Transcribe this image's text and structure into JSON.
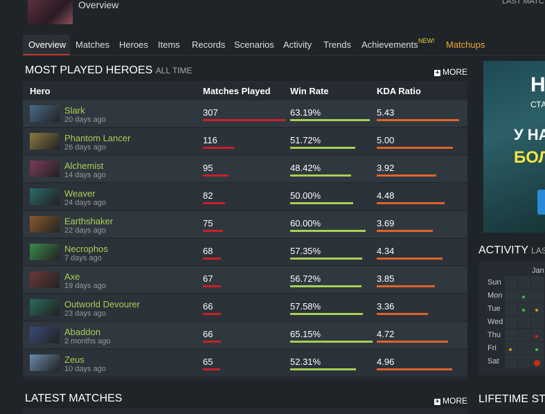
{
  "header": {
    "title": "Overview",
    "last_match": "LAST MATC"
  },
  "tabs": [
    "Overview",
    "Matches",
    "Heroes",
    "Items",
    "Records",
    "Scenarios",
    "Activity",
    "Trends",
    "Achievements",
    "Matchups"
  ],
  "tab_badge": "NEW!",
  "most_played": {
    "title": "MOST PLAYED HEROES",
    "subtitle": "ALL TIME",
    "more": "MORE",
    "columns": [
      "Hero",
      "Matches Played",
      "Win Rate",
      "KDA Ratio"
    ],
    "rows": [
      {
        "hero": "Slark",
        "last": "20 days ago",
        "matches": 307,
        "win_rate": 63.19,
        "win_rate_label": "63.19%",
        "kda": 5.43,
        "kda_label": "5.43"
      },
      {
        "hero": "Phantom Lancer",
        "last": "26 days ago",
        "matches": 116,
        "win_rate": 51.72,
        "win_rate_label": "51.72%",
        "kda": 5.0,
        "kda_label": "5.00"
      },
      {
        "hero": "Alchemist",
        "last": "14 days ago",
        "matches": 95,
        "win_rate": 48.42,
        "win_rate_label": "48.42%",
        "kda": 3.92,
        "kda_label": "3.92"
      },
      {
        "hero": "Weaver",
        "last": "24 days ago",
        "matches": 82,
        "win_rate": 50.0,
        "win_rate_label": "50.00%",
        "kda": 4.48,
        "kda_label": "4.48"
      },
      {
        "hero": "Earthshaker",
        "last": "22 days ago",
        "matches": 75,
        "win_rate": 60.0,
        "win_rate_label": "60.00%",
        "kda": 3.69,
        "kda_label": "3.69"
      },
      {
        "hero": "Necrophos",
        "last": "7 days ago",
        "matches": 68,
        "win_rate": 57.35,
        "win_rate_label": "57.35%",
        "kda": 4.34,
        "kda_label": "4.34"
      },
      {
        "hero": "Axe",
        "last": "19 days ago",
        "matches": 67,
        "win_rate": 56.72,
        "win_rate_label": "56.72%",
        "kda": 3.85,
        "kda_label": "3.85"
      },
      {
        "hero": "Outworld Devourer",
        "last": "23 days ago",
        "matches": 66,
        "win_rate": 57.58,
        "win_rate_label": "57.58%",
        "kda": 3.36,
        "kda_label": "3.36"
      },
      {
        "hero": "Abaddon",
        "last": "2 months ago",
        "matches": 66,
        "win_rate": 65.15,
        "win_rate_label": "65.15%",
        "kda": 4.72,
        "kda_label": "4.72"
      },
      {
        "hero": "Zeus",
        "last": "10 days ago",
        "matches": 65,
        "win_rate": 52.31,
        "win_rate_label": "52.31%",
        "kda": 4.96,
        "kda_label": "4.96"
      }
    ]
  },
  "ad": {
    "lines": [
      "Н",
      "СТА",
      "У НА",
      "БОЛ"
    ]
  },
  "activity": {
    "title": "ACTIVITY",
    "subtitle": "LAST",
    "month": "Jan",
    "days": [
      "Sun",
      "Mon",
      "Tue",
      "Wed",
      "Thu",
      "Fri",
      "Sat"
    ]
  },
  "latest_matches": {
    "title": "LATEST MATCHES",
    "more": "MORE"
  },
  "lifetime": {
    "title": "LIFETIME STA"
  }
}
